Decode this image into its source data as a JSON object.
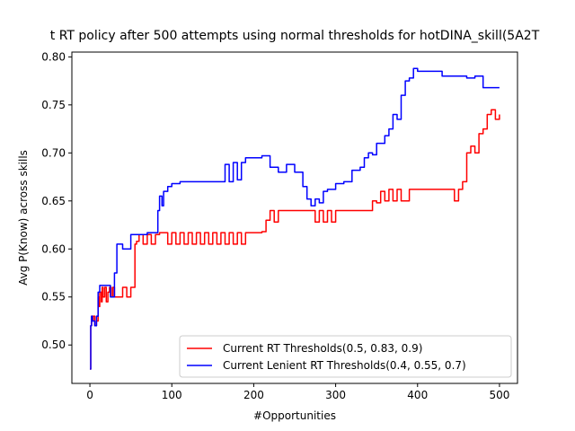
{
  "chart_data": {
    "type": "line",
    "title": "t RT policy after 500 attempts using normal thresholds for hotDINA_skill(5A2T",
    "xlabel": "#Opportunities",
    "ylabel": "Avg P(Know) across skills",
    "xlim": [
      -22,
      522
    ],
    "ylim": [
      0.46,
      0.805
    ],
    "xticks": [
      0,
      100,
      200,
      300,
      400,
      500
    ],
    "yticks": [
      0.5,
      0.55,
      0.6,
      0.65,
      0.7,
      0.75,
      0.8
    ],
    "xtick_labels": [
      "0",
      "100",
      "200",
      "300",
      "400",
      "500"
    ],
    "ytick_labels": [
      "0.50",
      "0.55",
      "0.60",
      "0.65",
      "0.70",
      "0.75",
      "0.80"
    ],
    "grid": false,
    "legend_position": "lower-right",
    "series": [
      {
        "name": "Current RT Thresholds(0.5, 0.83, 0.9)",
        "color": "#ff0000",
        "x": [
          0,
          1,
          2,
          3,
          4,
          6,
          8,
          10,
          11,
          12,
          14,
          15,
          16,
          18,
          20,
          22,
          24,
          26,
          28,
          30,
          35,
          40,
          45,
          50,
          55,
          57,
          60,
          65,
          70,
          75,
          80,
          85,
          90,
          95,
          100,
          105,
          110,
          115,
          120,
          125,
          130,
          135,
          140,
          145,
          150,
          155,
          160,
          165,
          170,
          175,
          180,
          185,
          190,
          200,
          210,
          215,
          220,
          225,
          230,
          240,
          250,
          260,
          270,
          275,
          280,
          285,
          290,
          295,
          300,
          310,
          320,
          330,
          340,
          345,
          350,
          355,
          360,
          365,
          370,
          375,
          380,
          390,
          400,
          410,
          420,
          430,
          440,
          445,
          450,
          455,
          460,
          465,
          470,
          475,
          480,
          485,
          490,
          495,
          500
        ],
        "y": [
          0.475,
          0.52,
          0.53,
          0.525,
          0.53,
          0.52,
          0.525,
          0.55,
          0.54,
          0.555,
          0.545,
          0.56,
          0.55,
          0.56,
          0.545,
          0.555,
          0.56,
          0.55,
          0.56,
          0.55,
          0.55,
          0.56,
          0.55,
          0.56,
          0.605,
          0.608,
          0.615,
          0.605,
          0.615,
          0.605,
          0.615,
          0.617,
          0.617,
          0.605,
          0.617,
          0.605,
          0.617,
          0.605,
          0.617,
          0.605,
          0.617,
          0.605,
          0.617,
          0.605,
          0.617,
          0.605,
          0.617,
          0.605,
          0.617,
          0.605,
          0.617,
          0.605,
          0.617,
          0.617,
          0.618,
          0.63,
          0.64,
          0.628,
          0.64,
          0.64,
          0.64,
          0.64,
          0.64,
          0.628,
          0.64,
          0.628,
          0.64,
          0.628,
          0.64,
          0.64,
          0.64,
          0.64,
          0.64,
          0.65,
          0.648,
          0.66,
          0.65,
          0.662,
          0.65,
          0.662,
          0.65,
          0.662,
          0.662,
          0.662,
          0.662,
          0.662,
          0.662,
          0.65,
          0.662,
          0.67,
          0.7,
          0.707,
          0.7,
          0.72,
          0.725,
          0.74,
          0.745,
          0.735,
          0.74
        ]
      },
      {
        "name": "Current Lenient RT Thresholds(0.4, 0.55, 0.7)",
        "color": "#0000ff",
        "x": [
          0,
          1,
          2,
          3,
          4,
          6,
          8,
          10,
          12,
          15,
          20,
          25,
          30,
          33,
          35,
          40,
          45,
          50,
          55,
          60,
          70,
          80,
          83,
          85,
          88,
          90,
          95,
          100,
          110,
          120,
          130,
          140,
          150,
          160,
          165,
          170,
          175,
          180,
          185,
          190,
          200,
          210,
          220,
          230,
          240,
          250,
          255,
          260,
          265,
          270,
          275,
          280,
          285,
          290,
          300,
          310,
          320,
          330,
          335,
          340,
          345,
          350,
          360,
          365,
          370,
          375,
          380,
          385,
          390,
          395,
          400,
          410,
          420,
          430,
          440,
          450,
          460,
          470,
          480,
          490,
          500
        ],
        "y": [
          0.475,
          0.52,
          0.53,
          0.525,
          0.525,
          0.52,
          0.53,
          0.555,
          0.562,
          0.562,
          0.562,
          0.55,
          0.575,
          0.605,
          0.605,
          0.6,
          0.6,
          0.615,
          0.615,
          0.615,
          0.617,
          0.617,
          0.64,
          0.655,
          0.645,
          0.66,
          0.665,
          0.668,
          0.67,
          0.67,
          0.67,
          0.67,
          0.67,
          0.67,
          0.688,
          0.67,
          0.69,
          0.672,
          0.69,
          0.695,
          0.695,
          0.697,
          0.685,
          0.68,
          0.688,
          0.68,
          0.68,
          0.665,
          0.652,
          0.645,
          0.652,
          0.648,
          0.66,
          0.662,
          0.668,
          0.67,
          0.682,
          0.685,
          0.695,
          0.7,
          0.698,
          0.71,
          0.718,
          0.725,
          0.74,
          0.735,
          0.76,
          0.775,
          0.778,
          0.788,
          0.785,
          0.785,
          0.785,
          0.78,
          0.78,
          0.78,
          0.778,
          0.78,
          0.768,
          0.768,
          0.768
        ]
      }
    ]
  }
}
